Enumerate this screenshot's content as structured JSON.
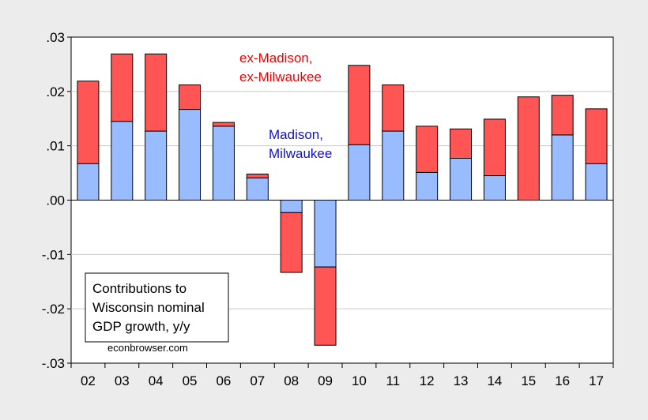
{
  "chart_data": {
    "type": "bar",
    "stacked": true,
    "categories": [
      "02",
      "03",
      "04",
      "05",
      "06",
      "07",
      "08",
      "09",
      "10",
      "11",
      "12",
      "13",
      "14",
      "15",
      "16",
      "17"
    ],
    "series": [
      {
        "name": "Madison, Milwaukee",
        "color": "#99bbff",
        "values": [
          0.0067,
          0.0145,
          0.0127,
          0.0167,
          0.0136,
          0.0041,
          -0.0023,
          -0.0123,
          0.0102,
          0.0127,
          0.0051,
          0.0077,
          0.0045,
          0.0,
          0.012,
          0.0067
        ]
      },
      {
        "name": "ex-Madison, ex-Milwaukee",
        "color": "#ff5555",
        "values": [
          0.0152,
          0.0124,
          0.0142,
          0.0045,
          0.0007,
          0.0007,
          -0.011,
          -0.0144,
          0.0146,
          0.0085,
          0.0085,
          0.0054,
          0.0104,
          0.019,
          0.0073,
          0.0101
        ]
      }
    ],
    "ylim": [
      -0.03,
      0.03
    ],
    "yticks": [
      ".03",
      ".02",
      ".01",
      ".00",
      "-.01",
      "-.02",
      "-.03"
    ],
    "grid": true,
    "annotations": {
      "ex_label_line1": "ex-Madison,",
      "ex_label_line2": "ex-Milwaukee",
      "mad_label_line1": "Madison,",
      "mad_label_line2": "Milwaukee",
      "ex_color": "#ee0000",
      "mad_color": "#1111cc"
    },
    "note_box": {
      "line1": "Contributions to",
      "line2": "Wisconsin nominal",
      "line3": "GDP growth, y/y",
      "credit": "econbrowser.com"
    }
  }
}
